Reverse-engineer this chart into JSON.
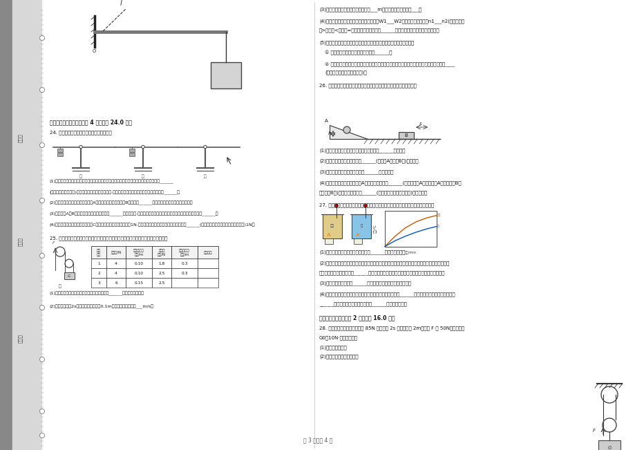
{
  "page_bg": "#ffffff",
  "sidebar_dark": "#888888",
  "sidebar_light": "#d8d8d8",
  "sidebar_texts": [
    [
      "考号：",
      200
    ],
    [
      "班级：",
      350
    ],
    [
      "姓名：",
      490
    ]
  ],
  "page_number_text": "第 3 页，共 4 页",
  "title_section4": "四、实验探究题（本大题共 4 小题，共 24.0 分）",
  "q24_text": "24. 小明在探究「杠杆的平衡条件」实验中。",
  "q24_sub1": "(1)实验前，将杠杆中点置于支架上，当杠杆静止时，发现杠杆左端下沉，初应将平衡螺母向______",
  "q24_sub1b": "(选填「左」或「右」)调节，使杠杆在水平位置平衡·调节杠杆在水平位置平衡，这样做的好处是______。",
  "q24_sub2": "(2)杠杆平衡后，小明在图甲所示的A位置挂上两个钩码，可在B位置挂上______个钩码，使杠杆在水平位置平衡。",
  "q24_sub3": "(3)如果再在A、B两处各多挂一个钩码，杠杆的______端将会下沉·此后，小红又经过多次实验，得出的杠杆的平衡条件是______。",
  "q24_sub4": "(4)他改用弹簧测力计在图乙所示的C位置斜向下拉，若每个钩码重1N·当杠杆在水平位置平衡时，测力计的示数______(选填「大于」、「等于」或「小于」)1N。",
  "q25_text": "25. 小明同学用如图甲所示的实验装置测量滑轮组的机械效率，相关数据记录在下表中。",
  "q25_sub1": "(1)实验中，使用滑轮组提升重物时，应竖直向上______拉动弹簧测力计。",
  "q25_sub2": "(2)第二次实验，2s内钩码上升的高度为0.1m，钩它运动的速度为___m/s。",
  "q3_line1": "(3)第三次实验中，绳端移动的距离为___m，滑轮组的机械效率为___。",
  "q4_line1": "(4)分析比较第一、二两次实验数据，有利用W1___W2，滑轮组的机械效率n1___n2(两空均选填",
  "q4_line2": "「>」、「<」或「=」）由此可知，可采用______的方法来提高滑轮组的机械效率。",
  "q5_line1": "(5)小红在小明实验的基础上多使用一个滑轮也做了实验，如图乙所示。",
  "q5_sub1": "① 小红多使用一个滑轮，目的是为了______。",
  "q5_sub2": "② 当这两位同学使用各自的滑轮组提升相同的重物时，若都略重量及摩擦，它们的机械效率____",
  "q5_sub2b": "(选填「相同」或「不相同」)。",
  "q26_text": "26. 如图是探究「物体的动能的大小与什么因素有关？」的实验示意图。",
  "q26_sub1": "(1)该实验要探究的是物体动能的大小与物体______的关系。",
  "q26_sub2": "(2)该实验物体的动能是指物体______(选填「A」或「B」)的动能。",
  "q26_sub3": "(3)该实验物体动能的大小是通过______来反映的。",
  "q26_sub4": "(4)该实验物体的速度是指物体A从斜面上静止滑下______(选填「碰前A」、「碰后A」、「碰前B」",
  "q26_sub4b": "或「碰后B」)的速度，它是通过______(选填「高度」或「质量」)来改变的。",
  "q27_text": "27. 利用如图甲所示的实验装置探究「沙子和水的温度变化与吸热的关系」操作如下：",
  "q27_sub1": "(1)在两烧杯中分别装入初温度相同且______等的沙子和水。",
  "q27_sub2": "(2)用相同的酒精灯大信加热，并用玻璃棒不断搅拌，每隔相同的时间记录一次温度，其中某时刻的",
  "q27_sub2b": "温度如图乙所示，其示数为______（根据实验数据绘制温度与时间的关系图像，如图丙所示：",
  "q27_sub3": "(3)实验中，是通过比较______来间接反映沙子和水吸收的热量。",
  "q27_sub4": "(4)分析图像可知，对于质量相等的沙子和水，升温较快的是______；若使两者升高相同的温度，则",
  "q27_sub4b": "______吸收的热量较多，由此可见，______的比热容较大。",
  "q5_calc": "五、计算题（本大题共 2 小题，共 16.0 分）",
  "q28_line1": "28. 用如图所示的滑轮组抬举重 85N 的物体在 2s 内匀速提升 2m，拉力 F 为 50N，动摩轮重",
  "q28_line2": "G0为10N·求此过程中：",
  "q28_line3": "(1)额外功是多少？",
  "q28_line4": "(2)滑轮组机械效率是多少？",
  "table_col_widths": [
    22,
    28,
    38,
    28,
    38,
    30
  ],
  "table_headers": [
    "实验\n次数",
    "钩码重/N",
    "钩码上升的\n高度/m",
    "绳端的\n拉力/N",
    "绳端移动的\n距离/m",
    "机械效率"
  ],
  "table_data": [
    [
      "1",
      "4",
      "0.10",
      "1.8",
      "0.3",
      ""
    ],
    [
      "2",
      "4",
      "0.10",
      "2.5",
      "0.3",
      ""
    ],
    [
      "3",
      "6",
      "0.15",
      "2.5",
      "",
      ""
    ]
  ]
}
